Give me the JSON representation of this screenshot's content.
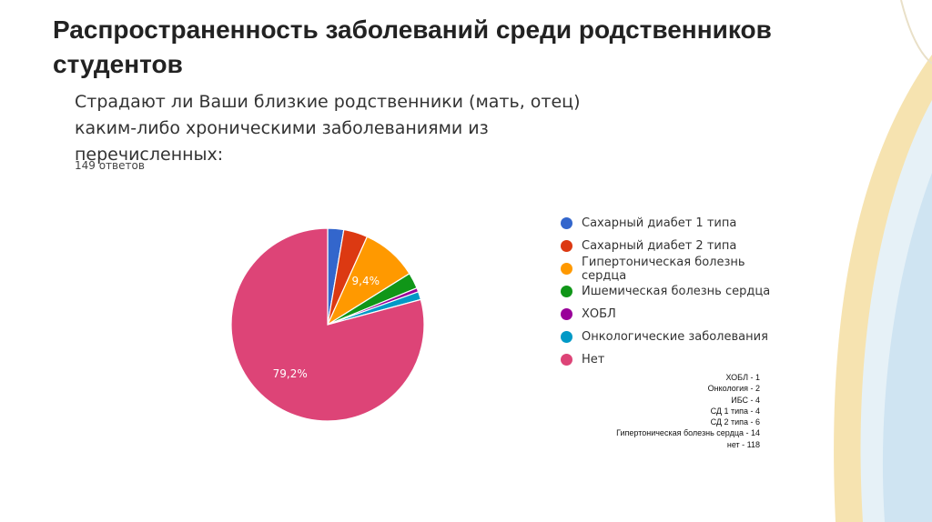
{
  "slide": {
    "title": "Распространенность заболеваний среди родственников студентов"
  },
  "chart_data": {
    "type": "pie",
    "title": "Страдают ли Ваши близкие родственники (мать, отец) каким-либо хроническими заболеваниями из перечисленных:",
    "subtitle": "149 ответов",
    "categories": [
      "Сахарный диабет 1 типа",
      "Сахарный диабет 2 типа",
      "Гипертоническая болезнь сердца",
      "Ишемическая болезнь сердца",
      "ХОБЛ",
      "Онкологические заболевания",
      "Нет"
    ],
    "values": [
      4,
      6,
      14,
      4,
      1,
      2,
      118
    ],
    "colors": [
      "#3366cc",
      "#dc3912",
      "#ff9900",
      "#109618",
      "#990099",
      "#0099c6",
      "#dd4477"
    ],
    "slice_labels": [
      {
        "index": 2,
        "text": "9,4%"
      },
      {
        "index": 6,
        "text": "79,2%"
      }
    ],
    "legend_position": "right",
    "start_angle_deg": 90
  },
  "counts_note": [
    "ХОБЛ - 1",
    "Онкология - 2",
    "ИБС  - 4",
    "СД 1 типа - 4",
    "СД 2 типа - 6",
    "Гипертоническая болезнь сердца - 14",
    "нет - 118"
  ]
}
